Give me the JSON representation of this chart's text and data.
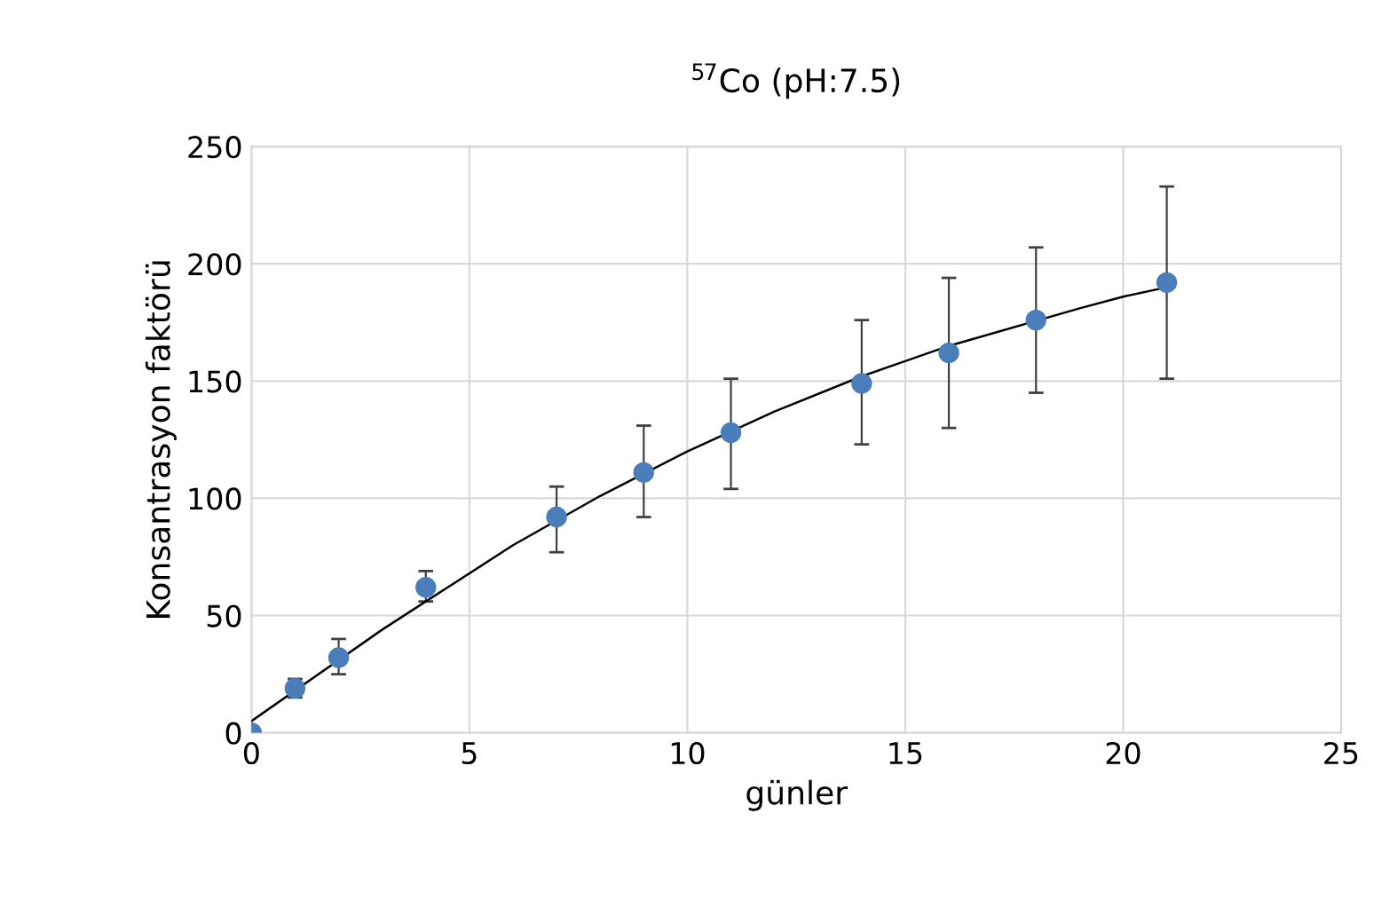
{
  "chart_data": {
    "type": "scatter",
    "title": "$^{57}$Co (pH:7.5)",
    "xlabel": "günler",
    "ylabel": "Konsantrasyon faktörü",
    "xlim": [
      0,
      25
    ],
    "xticks": [
      0,
      5,
      10,
      15,
      20,
      25
    ],
    "ylim": [
      0,
      250
    ],
    "yticks": [
      0,
      50,
      100,
      150,
      200,
      250
    ],
    "grid": true,
    "legend": false,
    "series": [
      {
        "color": "#4a7ebb",
        "marker": "circle",
        "x": [
          0,
          1,
          2,
          4,
          7,
          9,
          11,
          14,
          16,
          18,
          21
        ],
        "values": [
          0,
          19,
          32,
          62,
          92,
          111,
          128,
          149,
          162,
          176,
          192
        ],
        "errors": [
          null,
          [
            15,
            23
          ],
          [
            25,
            40
          ],
          [
            56,
            69
          ],
          [
            77,
            105
          ],
          [
            92,
            131
          ],
          [
            104,
            151
          ],
          [
            123,
            176
          ],
          [
            130,
            194
          ],
          [
            145,
            207
          ],
          [
            151,
            233
          ]
        ]
      },
      {
        "type": "line",
        "color": "#000000",
        "marker": "none",
        "line_style": "solid",
        "x": [
          0,
          3,
          4,
          6,
          8,
          10,
          12,
          14,
          16,
          19,
          20,
          21
        ],
        "values": [
          5,
          44,
          56,
          80,
          101,
          120,
          137,
          152,
          165,
          181,
          186,
          190
        ]
      }
    ]
  }
}
